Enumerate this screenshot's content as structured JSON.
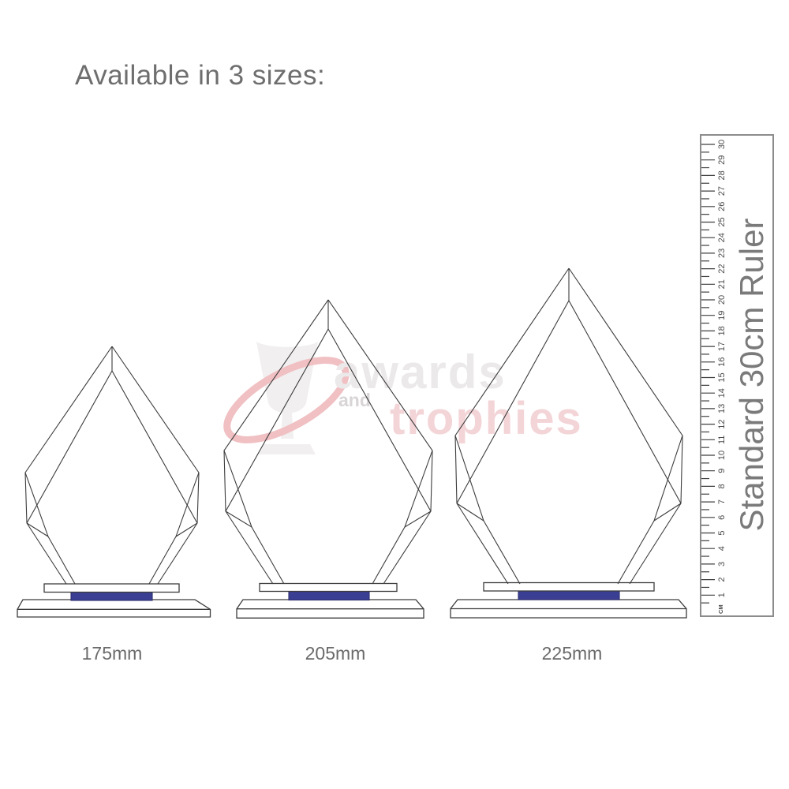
{
  "title": "Available in 3 sizes:",
  "sizes": [
    {
      "label": "175mm"
    },
    {
      "label": "205mm"
    },
    {
      "label": "225mm"
    }
  ],
  "ruler": {
    "label": "Standard 30cm Ruler",
    "unit_label": "CM",
    "cm_numbers": [
      1,
      2,
      3,
      4,
      5,
      6,
      7,
      8,
      9,
      10,
      11,
      12,
      13,
      14,
      15,
      16,
      17,
      18,
      19,
      20,
      21,
      22,
      23,
      24,
      25,
      26,
      27,
      28,
      29,
      30
    ]
  },
  "watermark": {
    "line1": "awards",
    "line2": "and",
    "line3": "trophies"
  },
  "colors": {
    "accent_blue": "#3b3f94",
    "accent_blue_border": "#2b2e6e",
    "line_art": "#3c3c3c",
    "text_gray": "#6e6e6e",
    "ruler_gray": "#7a7a7a",
    "watermark_pink": "#f3d4d7",
    "watermark_gray": "#ebe9ea"
  }
}
